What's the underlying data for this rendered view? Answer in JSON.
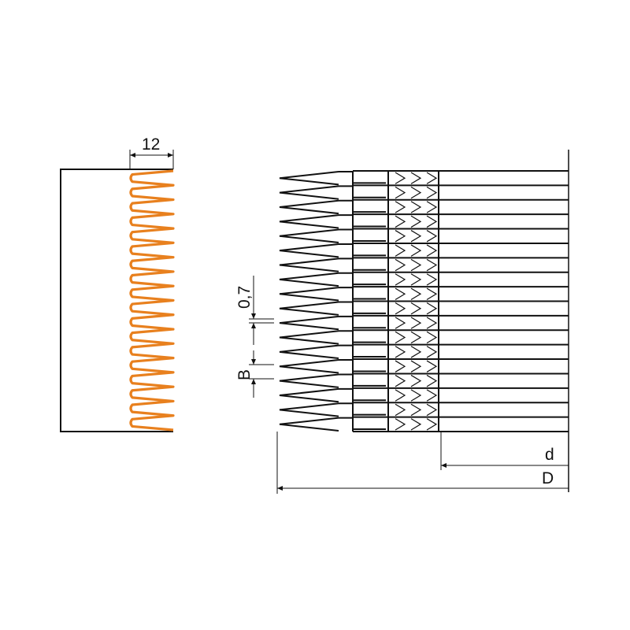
{
  "dimensions": {
    "profile_width": "12",
    "gap": "0,7",
    "blade_thickness": "B",
    "inner_diameter": "d",
    "outer_diameter": "D"
  },
  "colors": {
    "profile": "#e8801e",
    "line": "#111111"
  }
}
